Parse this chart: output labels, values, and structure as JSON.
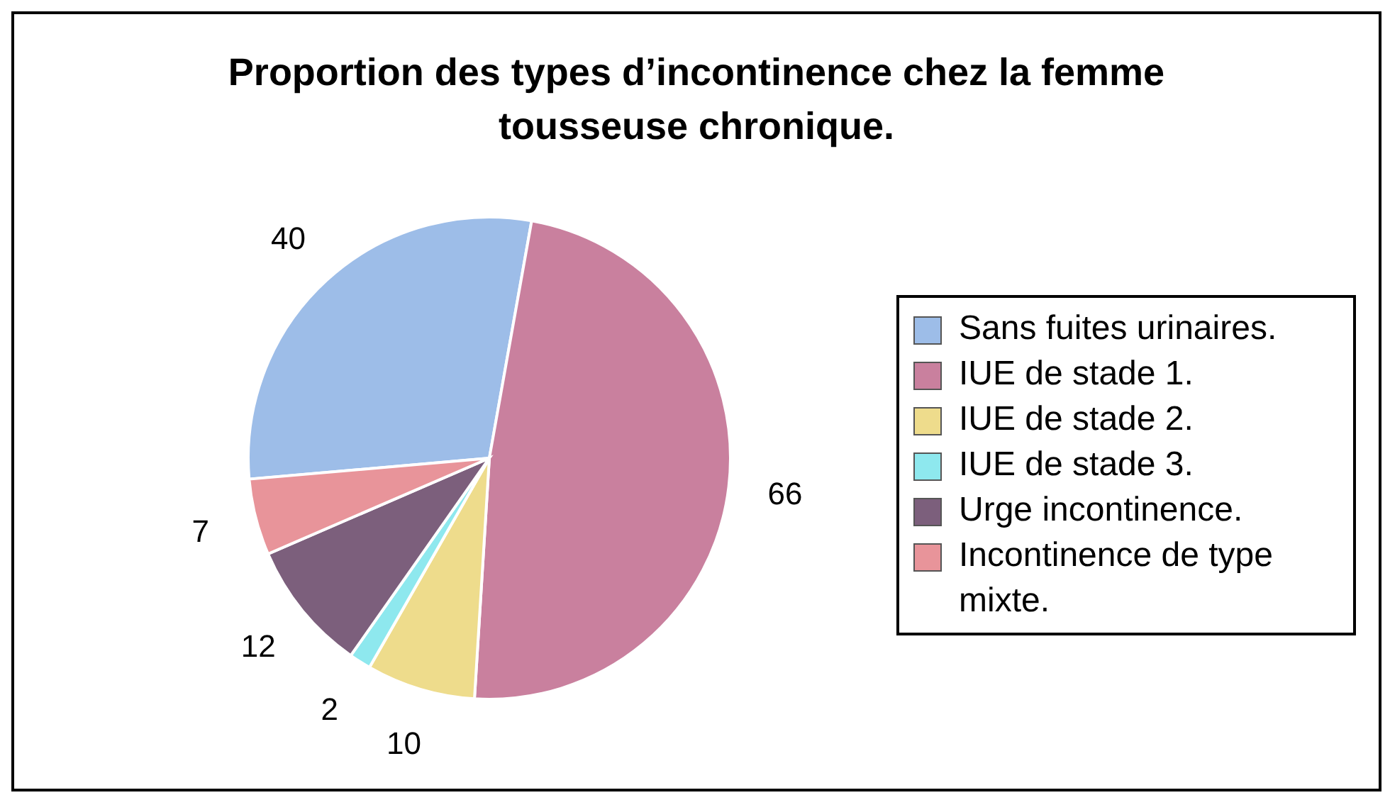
{
  "chart_data": {
    "type": "pie",
    "title": "Proportion des types d’incontinence chez la femme tousseuse chronique.",
    "categories": [
      "Sans fuites urinaires.",
      "IUE de stade 1.",
      "IUE de stade 2.",
      "IUE de stade 3.",
      "Urge incontinence.",
      "Incontinence de type mixte."
    ],
    "values": [
      40,
      66,
      10,
      2,
      12,
      7
    ],
    "colors": [
      "#9dbde8",
      "#c9809e",
      "#eedc8c",
      "#8ee8ee",
      "#7c5f7c",
      "#e8949a"
    ],
    "data_labels": true,
    "legend": "right"
  }
}
